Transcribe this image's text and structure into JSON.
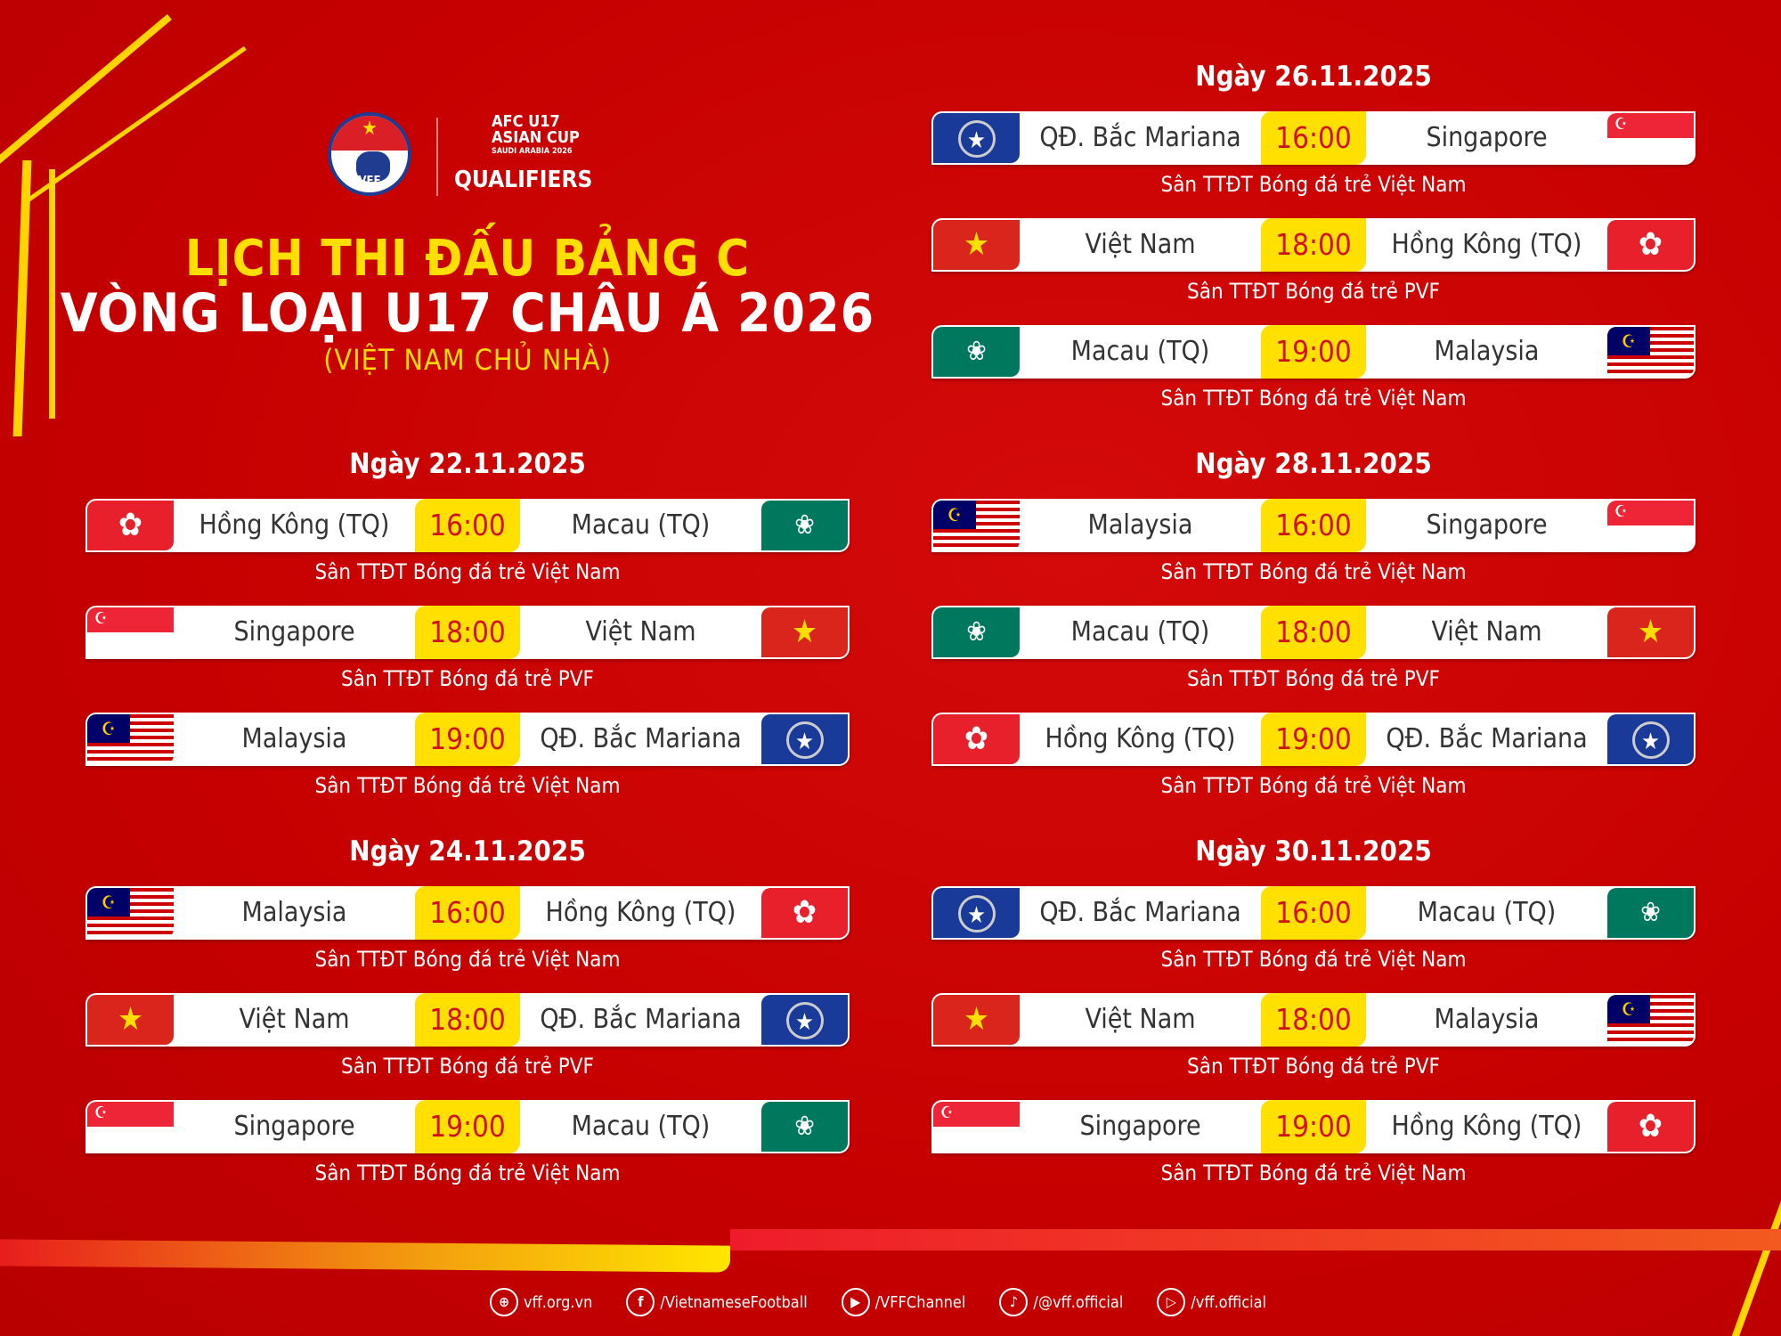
{
  "header": {
    "logo_vff": "VFF",
    "logo_afc": [
      "AFC U17",
      "ASIAN CUP",
      "SAUDI ARABIA 2026",
      "QUALIFIERS"
    ],
    "title_line1": "LỊCH THI ĐẤU BẢNG C",
    "title_line2": "VÒNG LOẠI U17 CHÂU Á 2026",
    "title_line3": "(VIỆT NAM CHỦ NHÀ)"
  },
  "colors": {
    "background": "#c60000",
    "accent_yellow": "#ffe000",
    "time_red": "#d2101a"
  },
  "days": [
    {
      "date": "Ngày 22.11.2025",
      "matches": [
        {
          "home": "Hồng Kông (TQ)",
          "home_flag": "hk",
          "time": "16:00",
          "away": "Macau (TQ)",
          "away_flag": "mo",
          "venue": "Sân TTĐT Bóng đá trẻ Việt Nam"
        },
        {
          "home": "Singapore",
          "home_flag": "sg",
          "time": "18:00",
          "away": "Việt Nam",
          "away_flag": "vn",
          "venue": "Sân TTĐT Bóng đá trẻ PVF"
        },
        {
          "home": "Malaysia",
          "home_flag": "my",
          "time": "19:00",
          "away": "QĐ. Bắc Mariana",
          "away_flag": "mp",
          "venue": "Sân TTĐT Bóng đá trẻ Việt Nam"
        }
      ]
    },
    {
      "date": "Ngày 24.11.2025",
      "matches": [
        {
          "home": "Malaysia",
          "home_flag": "my",
          "time": "16:00",
          "away": "Hồng Kông (TQ)",
          "away_flag": "hk",
          "venue": "Sân TTĐT Bóng đá trẻ Việt Nam"
        },
        {
          "home": "Việt Nam",
          "home_flag": "vn",
          "time": "18:00",
          "away": "QĐ. Bắc Mariana",
          "away_flag": "mp",
          "venue": "Sân TTĐT Bóng đá trẻ PVF"
        },
        {
          "home": "Singapore",
          "home_flag": "sg",
          "time": "19:00",
          "away": "Macau (TQ)",
          "away_flag": "mo",
          "venue": "Sân TTĐT Bóng đá trẻ Việt Nam"
        }
      ]
    },
    {
      "date": "Ngày 26.11.2025",
      "matches": [
        {
          "home": "QĐ. Bắc Mariana",
          "home_flag": "mp",
          "time": "16:00",
          "away": "Singapore",
          "away_flag": "sg",
          "venue": "Sân TTĐT Bóng đá trẻ Việt Nam"
        },
        {
          "home": "Việt Nam",
          "home_flag": "vn",
          "time": "18:00",
          "away": "Hồng Kông (TQ)",
          "away_flag": "hk",
          "venue": "Sân TTĐT Bóng đá trẻ PVF"
        },
        {
          "home": "Macau (TQ)",
          "home_flag": "mo",
          "time": "19:00",
          "away": "Malaysia",
          "away_flag": "my",
          "venue": "Sân TTĐT Bóng đá trẻ Việt Nam"
        }
      ]
    },
    {
      "date": "Ngày 28.11.2025",
      "matches": [
        {
          "home": "Malaysia",
          "home_flag": "my",
          "time": "16:00",
          "away": "Singapore",
          "away_flag": "sg",
          "venue": "Sân TTĐT Bóng đá trẻ Việt Nam"
        },
        {
          "home": "Macau (TQ)",
          "home_flag": "mo",
          "time": "18:00",
          "away": "Việt Nam",
          "away_flag": "vn",
          "venue": "Sân TTĐT Bóng đá trẻ PVF"
        },
        {
          "home": "Hồng Kông (TQ)",
          "home_flag": "hk",
          "time": "19:00",
          "away": "QĐ. Bắc Mariana",
          "away_flag": "mp",
          "venue": "Sân TTĐT Bóng đá trẻ Việt Nam"
        }
      ]
    },
    {
      "date": "Ngày 30.11.2025",
      "matches": [
        {
          "home": "QĐ. Bắc Mariana",
          "home_flag": "mp",
          "time": "16:00",
          "away": "Macau (TQ)",
          "away_flag": "mo",
          "venue": "Sân TTĐT Bóng đá trẻ Việt Nam"
        },
        {
          "home": "Việt Nam",
          "home_flag": "vn",
          "time": "18:00",
          "away": "Malaysia",
          "away_flag": "my",
          "venue": "Sân TTĐT Bóng đá trẻ PVF"
        },
        {
          "home": "Singapore",
          "home_flag": "sg",
          "time": "19:00",
          "away": "Hồng Kông (TQ)",
          "away_flag": "hk",
          "venue": "Sân TTĐT Bóng đá trẻ Việt Nam"
        }
      ]
    }
  ],
  "footer": [
    {
      "icon": "globe-icon",
      "text": "vff.org.vn"
    },
    {
      "icon": "facebook-icon",
      "text": "/VietnameseFootball"
    },
    {
      "icon": "youtube-icon",
      "text": "/VFFChannel"
    },
    {
      "icon": "tiktok-icon",
      "text": "/@vff.official"
    },
    {
      "icon": "play-icon",
      "text": "/vff.official"
    }
  ]
}
